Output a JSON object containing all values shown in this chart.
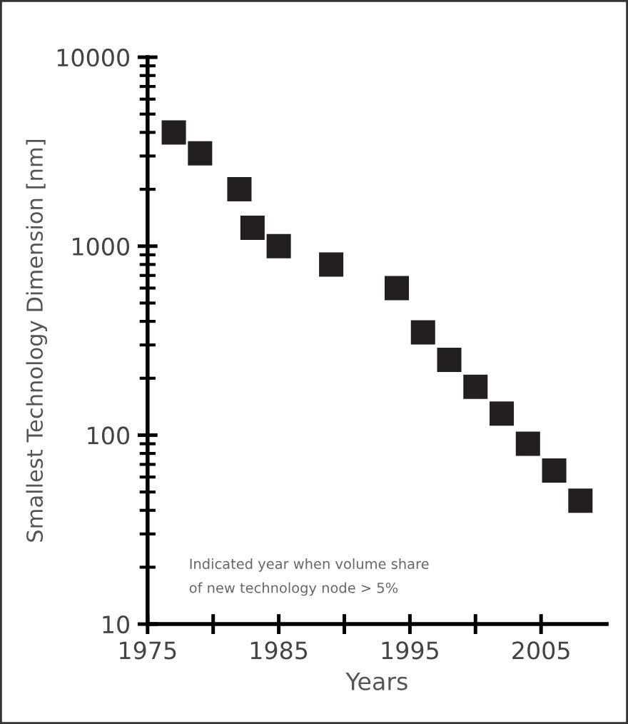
{
  "chart_data": {
    "type": "scatter",
    "xlabel": "Years",
    "ylabel": "Smallest Technology Dimension [nm]",
    "x": [
      1977,
      1979,
      1982,
      1983,
      1985,
      1989,
      1994,
      1996,
      1998,
      2000,
      2002,
      2004,
      2006,
      2008
    ],
    "series": [
      {
        "color": "#231f20",
        "values": [
          4000,
          3100,
          2000,
          1250,
          1000,
          800,
          600,
          350,
          250,
          180,
          130,
          90,
          65,
          45
        ]
      }
    ],
    "log": "y",
    "xlim": [
      1975,
      2010
    ],
    "ylim": [
      10,
      10000
    ],
    "xticks": [
      1975,
      {
        "value": 1980,
        "label": null
      },
      1985,
      {
        "value": 1990,
        "label": null
      },
      1995,
      {
        "value": 2000,
        "label": null
      },
      2005
    ],
    "yticks": [
      10,
      100,
      1000,
      10000
    ],
    "marker": "square",
    "grid": false,
    "annotations": [
      "Indicated year when volume share\nof new technology node > 5%"
    ]
  }
}
